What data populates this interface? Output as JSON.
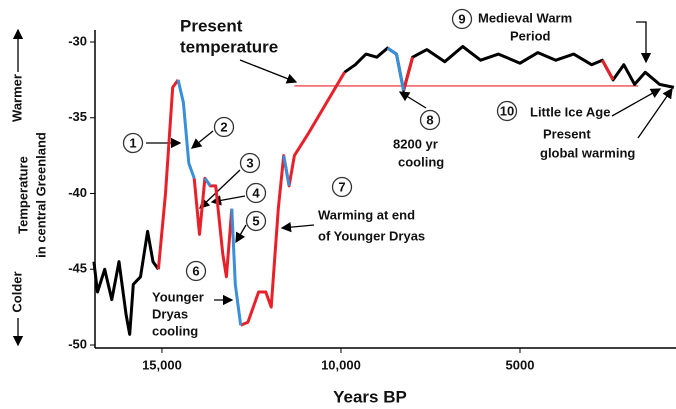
{
  "chart_data": {
    "type": "line",
    "xlabel": "Years BP",
    "ylabel_lines": [
      "Temperature",
      "in central Greenland"
    ],
    "y_top_label": "Warmer",
    "y_bottom_label": "Colder",
    "xlim": [
      16870,
      0
    ],
    "ylim": [
      -50,
      -30
    ],
    "xticks": [
      {
        "value": 15000,
        "label": "15,000"
      },
      {
        "value": 10000,
        "label": "10,000"
      },
      5000,
      0
    ],
    "yticks": [
      -30,
      -35,
      -40,
      -45,
      -50
    ],
    "x": [
      16900,
      16800,
      16600,
      16400,
      16200,
      16000,
      15900,
      15800,
      15600,
      15400,
      15250,
      15100,
      14900,
      14700,
      14550,
      14400,
      14250,
      14100,
      13950,
      13800,
      13650,
      13500,
      13300,
      13200,
      13050,
      12950,
      12800,
      12600,
      12300,
      12100,
      11950,
      11750,
      11600,
      11450,
      11300,
      10900,
      10400,
      9900,
      9600,
      9300,
      9000,
      8700,
      8450,
      8250,
      8000,
      7600,
      7100,
      6600,
      6100,
      5600,
      5000,
      4500,
      4000,
      3500,
      3000,
      2700,
      2400,
      2100,
      1800,
      1500,
      1100,
      700
    ],
    "series": [
      {
        "color": "#000000",
        "values": [
          -44.5,
          -46.5,
          -45,
          -47,
          -44.5,
          -48,
          -49.3,
          -46,
          -45.5,
          -42.5,
          -44.5,
          -45,
          null,
          null,
          null,
          null,
          null,
          null,
          null,
          null,
          null,
          null,
          null,
          null,
          null,
          null,
          null,
          null,
          null,
          null,
          null,
          null,
          null,
          null,
          null,
          null,
          null,
          -32,
          -31.5,
          -30.8,
          -31,
          -30.4,
          -30.8,
          -33.2,
          -31,
          -30.5,
          -31.3,
          -30.3,
          -31.2,
          -30.8,
          -31.4,
          -30.7,
          -31.2,
          -30.8,
          -31.5,
          -31.2,
          -32.5,
          -31.5,
          -32.8,
          -32,
          -32.8,
          -33
        ]
      },
      {
        "color": "#e8202a",
        "values": [
          null,
          null,
          null,
          null,
          null,
          null,
          null,
          null,
          null,
          null,
          null,
          -45,
          -40,
          -33,
          -32.5,
          null,
          null,
          -39,
          -42.7,
          -39,
          -39.5,
          -39.5,
          -44,
          -45.5,
          -41,
          null,
          -48.7,
          -48.5,
          -46.5,
          -46.5,
          -47.5,
          -41,
          -37.5,
          -39.5,
          -37.5,
          -36,
          -34,
          -32,
          null,
          null,
          null,
          null,
          null,
          -33.2,
          -31,
          null,
          null,
          null,
          null,
          null,
          null,
          null,
          null,
          null,
          null,
          -31.2,
          -32.5,
          null,
          null,
          null,
          null,
          null
        ]
      },
      {
        "color": "#3a8fd9",
        "values": [
          null,
          null,
          null,
          null,
          null,
          null,
          null,
          null,
          null,
          null,
          null,
          null,
          null,
          null,
          -32.5,
          -34,
          -38,
          -39,
          null,
          -39,
          -39.5,
          null,
          null,
          null,
          -41,
          -46,
          -48.7,
          null,
          null,
          null,
          null,
          null,
          -37.5,
          -39.5,
          null,
          null,
          null,
          null,
          null,
          null,
          null,
          -30.4,
          -30.8,
          -33.2,
          null,
          null,
          null,
          null,
          null,
          null,
          null,
          null,
          null,
          null,
          null,
          null,
          null,
          null,
          null,
          null,
          null,
          null
        ]
      }
    ],
    "reference_line": {
      "y": -32.9,
      "x": [
        11300,
        1700
      ],
      "color": "#e8202a"
    },
    "annotations": [
      {
        "number": 1
      },
      {
        "number": 2
      },
      {
        "number": 3
      },
      {
        "number": 4
      },
      {
        "number": 5
      },
      {
        "number": 6,
        "lines": [
          "Younger",
          "Dryas",
          "cooling"
        ]
      },
      {
        "number": 7,
        "lines": [
          "Warming at end",
          "of Younger Dryas"
        ]
      },
      {
        "number": 8,
        "lines": [
          "8200 yr",
          "cooling"
        ]
      },
      {
        "number": 9,
        "lines": [
          "Medieval Warm",
          "Period"
        ]
      },
      {
        "number": 10,
        "lines": [
          "Little Ice Age"
        ]
      }
    ],
    "notes": [
      {
        "lines": [
          "Present",
          "temperature"
        ]
      },
      {
        "lines": [
          "Present",
          "global warming"
        ]
      }
    ]
  }
}
